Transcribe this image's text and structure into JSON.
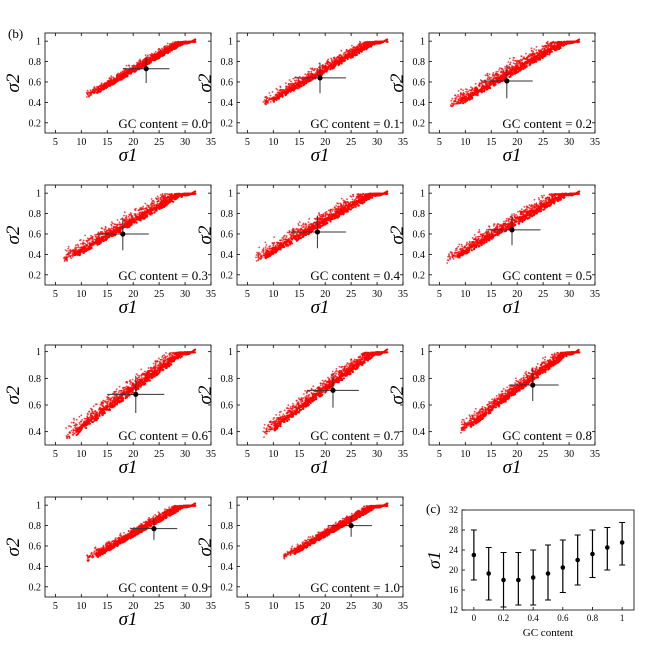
{
  "labels": {
    "b": "(b)",
    "c": "(c)"
  },
  "axis_symbols": {
    "x": "σ1",
    "y": "σ2"
  },
  "chart_data": [
    {
      "type": "scatter",
      "panel": "b",
      "gc_label": "GC content = 0.0",
      "gc": 0.0,
      "xlim": [
        3,
        35
      ],
      "ylim": [
        0.1,
        1.08
      ],
      "xticks": [
        5,
        10,
        15,
        20,
        25,
        30,
        35
      ],
      "yticks": [
        0.2,
        0.4,
        0.6,
        0.8,
        1.0
      ],
      "xmin": 11,
      "xmax": 32,
      "spread": 0.05,
      "mean": {
        "x": 22.5,
        "y": 0.73
      },
      "x_range": [
        18,
        27
      ],
      "y_range": [
        0.59,
        0.85
      ],
      "color": "#ff0000"
    },
    {
      "type": "scatter",
      "panel": "b",
      "gc_label": "GC content = 0.1",
      "gc": 0.1,
      "xlim": [
        3,
        35
      ],
      "ylim": [
        0.1,
        1.08
      ],
      "xticks": [
        5,
        10,
        15,
        20,
        25,
        30,
        35
      ],
      "yticks": [
        0.2,
        0.4,
        0.6,
        0.8,
        1.0
      ],
      "xmin": 8,
      "xmax": 32,
      "spread": 0.07,
      "mean": {
        "x": 19,
        "y": 0.64
      },
      "x_range": [
        14,
        24
      ],
      "y_range": [
        0.49,
        0.79
      ],
      "color": "#ff0000"
    },
    {
      "type": "scatter",
      "panel": "b",
      "gc_label": "GC content = 0.2",
      "gc": 0.2,
      "xlim": [
        3,
        35
      ],
      "ylim": [
        0.1,
        1.08
      ],
      "xticks": [
        5,
        10,
        15,
        20,
        25,
        30,
        35
      ],
      "yticks": [
        0.2,
        0.4,
        0.6,
        0.8,
        1.0
      ],
      "xmin": 7,
      "xmax": 32,
      "spread": 0.1,
      "mean": {
        "x": 18,
        "y": 0.61
      },
      "x_range": [
        13,
        23
      ],
      "y_range": [
        0.44,
        0.77
      ],
      "color": "#ff0000"
    },
    {
      "type": "scatter",
      "panel": "b",
      "gc_label": "GC content = 0.3",
      "gc": 0.3,
      "xlim": [
        3,
        35
      ],
      "ylim": [
        0.1,
        1.08
      ],
      "xticks": [
        5,
        10,
        15,
        20,
        25,
        30,
        35
      ],
      "yticks": [
        0.2,
        0.4,
        0.6,
        0.8,
        1.0
      ],
      "xmin": 6.5,
      "xmax": 32,
      "spread": 0.1,
      "mean": {
        "x": 18,
        "y": 0.6
      },
      "x_range": [
        13,
        23
      ],
      "y_range": [
        0.44,
        0.76
      ],
      "color": "#ff0000"
    },
    {
      "type": "scatter",
      "panel": "b",
      "gc_label": "GC content = 0.4",
      "gc": 0.4,
      "xlim": [
        3,
        35
      ],
      "ylim": [
        0.1,
        1.08
      ],
      "xticks": [
        5,
        10,
        15,
        20,
        25,
        30,
        35
      ],
      "yticks": [
        0.2,
        0.4,
        0.6,
        0.8,
        1.0
      ],
      "xmin": 6.5,
      "xmax": 32,
      "spread": 0.1,
      "mean": {
        "x": 18.5,
        "y": 0.62
      },
      "x_range": [
        13,
        24
      ],
      "y_range": [
        0.46,
        0.78
      ],
      "color": "#ff0000"
    },
    {
      "type": "scatter",
      "panel": "b",
      "gc_label": "GC content = 0.5",
      "gc": 0.5,
      "xlim": [
        3,
        35
      ],
      "ylim": [
        0.1,
        1.08
      ],
      "xticks": [
        5,
        10,
        15,
        20,
        25,
        30,
        35
      ],
      "yticks": [
        0.2,
        0.4,
        0.6,
        0.8,
        1.0
      ],
      "xmin": 6.5,
      "xmax": 32,
      "spread": 0.09,
      "mean": {
        "x": 19,
        "y": 0.64
      },
      "x_range": [
        14,
        24.5
      ],
      "y_range": [
        0.49,
        0.8
      ],
      "color": "#ff0000"
    },
    {
      "type": "scatter",
      "panel": "b",
      "gc_label": "GC content = 0.6",
      "gc": 0.6,
      "xlim": [
        3,
        35
      ],
      "ylim": [
        0.3,
        1.05
      ],
      "xticks": [
        5,
        10,
        15,
        20,
        25,
        30,
        35
      ],
      "yticks": [
        0.4,
        0.6,
        0.8,
        1.0
      ],
      "xmin": 7,
      "xmax": 32,
      "spread": 0.08,
      "mean": {
        "x": 20.5,
        "y": 0.68
      },
      "x_range": [
        15,
        26
      ],
      "y_range": [
        0.54,
        0.82
      ],
      "color": "#ff0000"
    },
    {
      "type": "scatter",
      "panel": "b",
      "gc_label": "GC content = 0.7",
      "gc": 0.7,
      "xlim": [
        3,
        35
      ],
      "ylim": [
        0.3,
        1.05
      ],
      "xticks": [
        5,
        10,
        15,
        20,
        25,
        30,
        35
      ],
      "yticks": [
        0.4,
        0.6,
        0.8,
        1.0
      ],
      "xmin": 8,
      "xmax": 32,
      "spread": 0.07,
      "mean": {
        "x": 21.5,
        "y": 0.71
      },
      "x_range": [
        16.5,
        26.5
      ],
      "y_range": [
        0.58,
        0.84
      ],
      "color": "#ff0000"
    },
    {
      "type": "scatter",
      "panel": "b",
      "gc_label": "GC content = 0.8",
      "gc": 0.8,
      "xlim": [
        3,
        35
      ],
      "ylim": [
        0.3,
        1.05
      ],
      "xticks": [
        5,
        10,
        15,
        20,
        25,
        30,
        35
      ],
      "yticks": [
        0.4,
        0.6,
        0.8,
        1.0
      ],
      "xmin": 9,
      "xmax": 32,
      "spread": 0.06,
      "mean": {
        "x": 23,
        "y": 0.75
      },
      "x_range": [
        18.5,
        28
      ],
      "y_range": [
        0.63,
        0.87
      ],
      "color": "#ff0000"
    },
    {
      "type": "scatter",
      "panel": "b",
      "gc_label": "GC content = 0.9",
      "gc": 0.9,
      "xlim": [
        3,
        35
      ],
      "ylim": [
        0.1,
        1.08
      ],
      "xticks": [
        5,
        10,
        15,
        20,
        25,
        30,
        35
      ],
      "yticks": [
        0.2,
        0.4,
        0.6,
        0.8,
        1.0
      ],
      "xmin": 11,
      "xmax": 32,
      "spread": 0.05,
      "mean": {
        "x": 24,
        "y": 0.77
      },
      "x_range": [
        19.5,
        28.5
      ],
      "y_range": [
        0.66,
        0.88
      ],
      "color": "#ff0000"
    },
    {
      "type": "scatter",
      "panel": "b",
      "gc_label": "GC content = 1.0",
      "gc": 1.0,
      "xlim": [
        3,
        35
      ],
      "ylim": [
        0.1,
        1.08
      ],
      "xticks": [
        5,
        10,
        15,
        20,
        25,
        30,
        35
      ],
      "yticks": [
        0.2,
        0.4,
        0.6,
        0.8,
        1.0
      ],
      "xmin": 12,
      "xmax": 32,
      "spread": 0.04,
      "mean": {
        "x": 25,
        "y": 0.8
      },
      "x_range": [
        20.5,
        29
      ],
      "y_range": [
        0.69,
        0.9
      ],
      "color": "#ff0000"
    },
    {
      "type": "errorbar",
      "panel": "c",
      "xlabel": "GC content",
      "ylabel": "σ1",
      "xlim": [
        -0.08,
        1.08
      ],
      "ylim": [
        12,
        32
      ],
      "xticks": [
        0,
        0.2,
        0.4,
        0.6,
        0.8,
        1
      ],
      "yticks": [
        12,
        16,
        20,
        24,
        28,
        32
      ],
      "x": [
        0,
        0.1,
        0.2,
        0.3,
        0.4,
        0.5,
        0.6,
        0.7,
        0.8,
        0.9,
        1.0
      ],
      "y": [
        23,
        19.3,
        18,
        18,
        18.5,
        19.3,
        20.5,
        22,
        23.2,
        24.5,
        25.5
      ],
      "low": [
        18,
        14,
        12.6,
        13,
        13,
        14,
        15.5,
        17,
        18.5,
        20,
        21
      ],
      "high": [
        28,
        24.5,
        23.5,
        23.5,
        24,
        25,
        26,
        27,
        28,
        28.5,
        29.5
      ]
    }
  ]
}
